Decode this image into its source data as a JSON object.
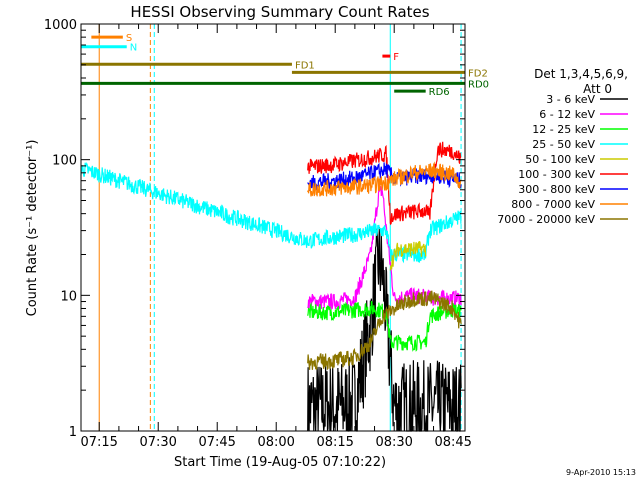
{
  "chart_data": {
    "type": "line",
    "title": "HESSI Observing Summary Count Rates",
    "xlabel": "Start Time (19-Aug-05 07:10:22)",
    "ylabel": "Count Rate (s⁻¹ detector⁻¹)",
    "xlim": [
      "07:10:22",
      "08:48:00"
    ],
    "ylim": [
      1,
      1000
    ],
    "yscale": "log",
    "x_ticks": [
      "07:15",
      "07:30",
      "07:45",
      "08:00",
      "08:15",
      "08:30",
      "08:45"
    ],
    "y_ticks": [
      "1",
      "10",
      "100",
      "1000"
    ],
    "legend_title": "Det 1,3,4,5,6,9, Att 0",
    "legend_title_lines": [
      "Det 1,3,4,5,6,9,",
      "Att 0"
    ],
    "legend_placement": "right",
    "date_stamp": "9-Apr-2010 15:13",
    "series": [
      {
        "name": "3 - 6 keV",
        "color": "#000000",
        "x": [
          "08:08",
          "08:15",
          "08:20",
          "08:24",
          "08:26",
          "08:27",
          "08:30",
          "08:35",
          "08:40",
          "08:45",
          "08:47"
        ],
        "y": [
          1.5,
          1.5,
          1.6,
          6,
          18,
          15,
          1.5,
          1.5,
          1.5,
          1.5,
          1.5
        ]
      },
      {
        "name": "6 - 12 keV",
        "color": "#ff00ff",
        "x": [
          "08:08",
          "08:15",
          "08:20",
          "08:24",
          "08:26",
          "08:27",
          "08:28",
          "08:30",
          "08:35",
          "08:40",
          "08:45",
          "08:47"
        ],
        "y": [
          9,
          9,
          9.5,
          20,
          55,
          60,
          30,
          9.5,
          10,
          9.5,
          9.5,
          9.5
        ]
      },
      {
        "name": "12 - 25 keV",
        "color": "#00ff00",
        "x": [
          "08:08",
          "08:15",
          "08:20",
          "08:25",
          "08:28",
          "08:29",
          "08:32",
          "08:38",
          "08:39",
          "08:42",
          "08:45",
          "08:47"
        ],
        "y": [
          7.5,
          7.5,
          7.8,
          8,
          7.5,
          4.5,
          4.5,
          4.5,
          7,
          7.5,
          7.8,
          7.5
        ]
      },
      {
        "name": "25 - 50 keV",
        "color": "#00ffff",
        "x": [
          "07:10:22",
          "07:11",
          "08:08",
          "08:15",
          "08:20",
          "08:25",
          "08:28",
          "08:29",
          "08:38",
          "08:39",
          "08:45",
          "08:47"
        ],
        "y": [
          85,
          85,
          25,
          27,
          28,
          30,
          30,
          20,
          20,
          30,
          36,
          38
        ]
      },
      {
        "name": "50 - 100 keV",
        "color": "#cccc00",
        "x": [
          "08:29",
          "08:31",
          "08:35",
          "08:38"
        ],
        "y": [
          17,
          22,
          22,
          22
        ]
      },
      {
        "name": "100 - 300 keV",
        "color": "#ff0000",
        "x": [
          "08:08",
          "08:15",
          "08:20",
          "08:25",
          "08:28",
          "08:29",
          "08:31",
          "08:38",
          "08:39",
          "08:41",
          "08:45",
          "08:47"
        ],
        "y": [
          88,
          92,
          98,
          105,
          110,
          38,
          40,
          42,
          38,
          120,
          115,
          100
        ]
      },
      {
        "name": "300 - 800 keV",
        "color": "#0000ff",
        "x": [
          "08:08",
          "08:15",
          "08:20",
          "08:25",
          "08:28",
          "08:30",
          "08:35",
          "08:40",
          "08:45",
          "08:47"
        ],
        "y": [
          67,
          70,
          73,
          80,
          85,
          72,
          75,
          77,
          72,
          70
        ]
      },
      {
        "name": "800 - 7000 keV",
        "color": "#ff8000",
        "x": [
          "08:08",
          "08:15",
          "08:20",
          "08:25",
          "08:28",
          "08:30",
          "08:35",
          "08:40",
          "08:45",
          "08:47"
        ],
        "y": [
          60,
          62,
          63,
          65,
          68,
          72,
          80,
          83,
          78,
          66
        ]
      },
      {
        "name": "7000 - 20000 keV",
        "color": "#8b7500",
        "x": [
          "08:08",
          "08:15",
          "08:20",
          "08:24",
          "08:27",
          "08:30",
          "08:35",
          "08:40",
          "08:45",
          "08:47"
        ],
        "y": [
          3.2,
          3.3,
          3.5,
          4.5,
          7,
          8,
          9.5,
          9.5,
          8,
          6
        ]
      }
    ],
    "status_bars": [
      {
        "label": "S",
        "color": "#ff8000",
        "x_start": "07:13",
        "x_end": "07:21",
        "level": 800
      },
      {
        "label": "N",
        "color": "#00ffff",
        "x_start": "07:10:22",
        "x_end": "07:22",
        "level": 680
      },
      {
        "label": "FD1",
        "color": "#8b7500",
        "x_start": "07:10:22",
        "x_end": "08:04",
        "level": 505
      },
      {
        "label": "FD2",
        "color": "#8b7500",
        "x_start": "08:04",
        "x_end": "08:48:00",
        "level": 440
      },
      {
        "label": "F",
        "color": "#ff0000",
        "x_start": "08:27",
        "x_end": "08:29",
        "level": 580
      },
      {
        "label": "RD0",
        "color": "#006400",
        "x_start": "07:10:22",
        "x_end": "08:48:00",
        "level": 365
      },
      {
        "label": "RD6",
        "color": "#006400",
        "x_start": "08:30",
        "x_end": "08:38",
        "level": 320
      }
    ],
    "vertical_lines": [
      {
        "color": "#ff8000",
        "x": "07:15",
        "style": "solid"
      },
      {
        "color": "#ff8000",
        "x": "07:28",
        "style": "dashed"
      },
      {
        "color": "#00ffff",
        "x": "07:29",
        "style": "dashed"
      },
      {
        "color": "#00ffff",
        "x": "08:29",
        "style": "solid"
      },
      {
        "color": "#00ffff",
        "x": "08:47",
        "style": "dashed"
      }
    ],
    "grid": false
  }
}
